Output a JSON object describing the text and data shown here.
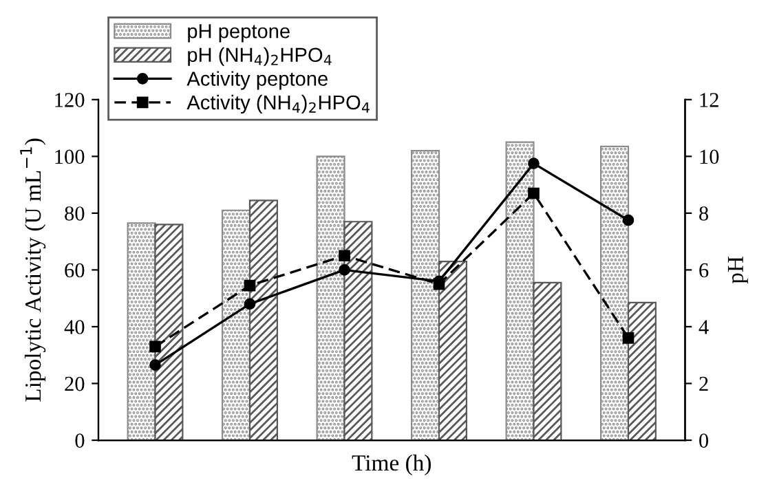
{
  "chart_data": {
    "type": "bar",
    "xlabel": "Time (h)",
    "ylabel": "Lipolytic Activity (U mL$^{−1}$)",
    "y2label": "pH",
    "categories": [
      null,
      null,
      null,
      null,
      null,
      null
    ],
    "series": [
      {
        "name": "pH peptone",
        "axis": "y2",
        "color": "#8c8c8c",
        "values": [
          7.65,
          8.1,
          10.0,
          10.2,
          10.5,
          10.35
        ]
      },
      {
        "name": "pH (NH$_{4}$)$_{2}$HPO$_{4}$",
        "axis": "y2",
        "color": "#595959",
        "values": [
          7.6,
          8.45,
          7.7,
          6.3,
          5.55,
          4.85
        ]
      },
      {
        "name": "Activity peptone",
        "type": "line",
        "color": "#000000",
        "marker": "circle",
        "line_style": "solid",
        "values": [
          26.5,
          48,
          60,
          56,
          97.5,
          77.5
        ]
      },
      {
        "name": "Activity (NH$_{4}$)$_{2}$HPO$_{4}$",
        "type": "line",
        "color": "#000000",
        "marker": "square",
        "line_style": "dashed",
        "values": [
          33,
          54.5,
          65,
          55,
          87,
          36
        ]
      }
    ],
    "ylim": [
      0,
      120
    ],
    "yticks": [
      0,
      20,
      40,
      60,
      80,
      100,
      120
    ],
    "y2lim": [
      0,
      12
    ],
    "y2ticks": [
      0,
      2,
      4,
      6,
      8,
      10,
      12
    ],
    "legend": "top left",
    "grid": false
  }
}
